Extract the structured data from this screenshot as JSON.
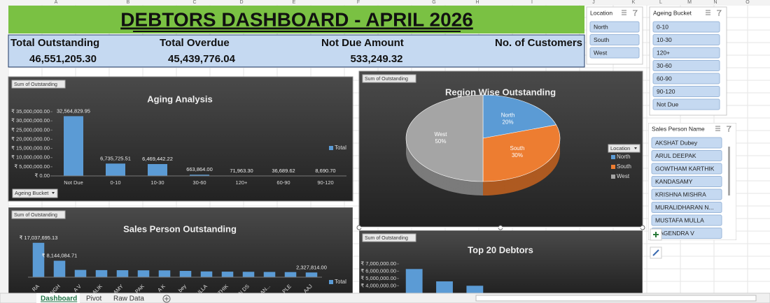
{
  "sheet": {
    "columns": [
      "A",
      "B",
      "C",
      "D",
      "E",
      "F",
      "G",
      "H",
      "I",
      "J",
      "K",
      "L",
      "M",
      "N",
      "O"
    ],
    "tabs": [
      "Dashboard",
      "Pivot",
      "Raw Data"
    ]
  },
  "header": {
    "title": "DEBTORS DASHBOARD - APRIL 2026"
  },
  "kpis": [
    {
      "label": "Total Outstanding",
      "value": "46,551,205.30"
    },
    {
      "label": "Total Overdue",
      "value": "45,439,776.04"
    },
    {
      "label": "Not Due Amount",
      "value": "533,249.32"
    },
    {
      "label": "No. of Customers"
    }
  ],
  "chart_data": [
    {
      "type": "bar",
      "field_button": "Sum of Outstanding",
      "title": "Aging Analysis",
      "categories": [
        "Not Due",
        "0-10",
        "10-30",
        "30-60",
        "120+",
        "60-90",
        "90-120"
      ],
      "values": [
        32564829.95,
        6735725.51,
        6469442.22,
        663864.0,
        71963.3,
        36689.62,
        8690.7
      ],
      "value_labels": [
        "32,564,829.95",
        "6,735,725.51",
        "6,469,442.22",
        "663,864.00",
        "71,963.30",
        "36,689.62",
        "8,690.70"
      ],
      "color": "#5b9bd5",
      "ylim": [
        0,
        35000000
      ],
      "yticks": [
        {
          "value": 0,
          "label": "₹ 0.00"
        },
        {
          "value": 5000000,
          "label": "₹ 5,000,000.00"
        },
        {
          "value": 10000000,
          "label": "₹ 10,000,000.00"
        },
        {
          "value": 15000000,
          "label": "₹ 15,000,000.00"
        },
        {
          "value": 20000000,
          "label": "₹ 20,000,000.00"
        },
        {
          "value": 25000000,
          "label": "₹ 25,000,000.00"
        },
        {
          "value": 30000000,
          "label": "₹ 30,000,000.00"
        },
        {
          "value": 35000000,
          "label": "₹ 35,000,000.00"
        }
      ],
      "legend": "Total",
      "axis_button": "Ageing Bucket"
    },
    {
      "type": "pie",
      "field_button": "Sum of Outstanding",
      "title": "Region Wise Outstanding",
      "categories": [
        "North",
        "South",
        "West"
      ],
      "values": [
        20,
        30,
        50
      ],
      "value_labels": [
        "20%",
        "30%",
        "50%"
      ],
      "colors": [
        "#5b9bd5",
        "#ed7d31",
        "#a5a5a5"
      ],
      "legend_button": "Location"
    },
    {
      "type": "bar",
      "field_button": "Sum of Outstanding",
      "title": "Sales Person Outstanding",
      "categories": [
        "RA",
        "NGH",
        "A V",
        "ALIK",
        "AMY",
        "PAK",
        "A K",
        "bey",
        "ULLA",
        "THIK",
        "AN DS",
        "RAN...",
        "PLE",
        "AAJ"
      ],
      "values": [
        17037695.13,
        8144084.71,
        3595484,
        3493300,
        3450000,
        3400000,
        3366506,
        3110000,
        2848935,
        2741651,
        2664889,
        2596659,
        2529160,
        2327814
      ],
      "value_labels": [
        "₹ 17,037,695.13",
        "₹ 8,144,084.71",
        null,
        null,
        null,
        null,
        null,
        null,
        null,
        null,
        null,
        null,
        null,
        "2,327,814.00"
      ],
      "color": "#5b9bd5",
      "ylim": [
        0,
        18000000
      ],
      "legend": "Total"
    },
    {
      "type": "bar",
      "field_button": "Sum of Outstanding",
      "title": "Top 20 Debtors",
      "categories": [
        null,
        null,
        null
      ],
      "values": [
        6300000,
        4600000,
        4000000
      ],
      "color": "#5b9bd5",
      "ylim": [
        0,
        7000000
      ],
      "yticks": [
        {
          "value": 4000000,
          "label": "₹ 4,000,000.00"
        },
        {
          "value": 5000000,
          "label": "₹ 5,000,000.00"
        },
        {
          "value": 6000000,
          "label": "₹ 6,000,000.00"
        },
        {
          "value": 7000000,
          "label": "₹ 7,000,000.00"
        }
      ]
    }
  ],
  "slicers": [
    {
      "title": "Location",
      "items": [
        "North",
        "South",
        "West"
      ]
    },
    {
      "title": "Ageing Bucket",
      "items": [
        "0-10",
        "10-30",
        "120+",
        "30-60",
        "60-90",
        "90-120",
        "Not Due"
      ]
    },
    {
      "title": "Sales Person Name",
      "items": [
        "AKSHAT Dubey",
        "ARUL DEEPAK",
        "GOWTHAM KARTHIK",
        "KANDASAMY",
        "KRISHNA MISHRA",
        "MURALIDHARAN N...",
        "MUSTAFA MULLA",
        "NAGENDRA V"
      ]
    }
  ]
}
